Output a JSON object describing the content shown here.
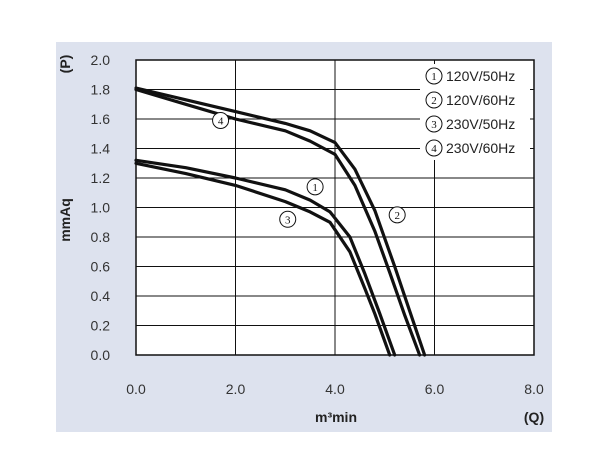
{
  "chart_data": {
    "type": "line",
    "xlabel": "m³min",
    "x_axis_symbol": "(Q)",
    "ylabel": "mmAq",
    "y_axis_symbol": "(P)",
    "xlim": [
      0,
      8
    ],
    "ylim": [
      0,
      2
    ],
    "x_ticks": [
      0,
      2,
      4,
      6,
      8
    ],
    "x_tick_labels": [
      "0.0",
      "2.0",
      "4.0",
      "6.0",
      "8.0"
    ],
    "y_ticks": [
      0,
      0.2,
      0.4,
      0.6,
      0.8,
      1.0,
      1.2,
      1.4,
      1.6,
      1.8,
      2.0
    ],
    "y_tick_labels": [
      "0.0",
      "0.2",
      "0.4",
      "0.6",
      "0.8",
      "1.0",
      "1.2",
      "1.4",
      "1.6",
      "1.8",
      "2.0"
    ],
    "grid": true,
    "legend_position": "top-right",
    "series": [
      {
        "marker": "1",
        "name": "120V/50Hz",
        "x": [
          0,
          1.0,
          2.0,
          3.0,
          3.5,
          3.9,
          4.3,
          4.6,
          4.9,
          5.2
        ],
        "y": [
          1.32,
          1.27,
          1.2,
          1.12,
          1.05,
          0.97,
          0.8,
          0.55,
          0.28,
          0.0
        ]
      },
      {
        "marker": "2",
        "name": "120V/60Hz",
        "x": [
          0,
          1.0,
          2.0,
          3.0,
          3.5,
          4.0,
          4.4,
          4.8,
          5.2,
          5.5,
          5.8
        ],
        "y": [
          1.81,
          1.73,
          1.65,
          1.57,
          1.52,
          1.44,
          1.26,
          0.98,
          0.6,
          0.3,
          0.0
        ]
      },
      {
        "marker": "3",
        "name": "230V/50Hz",
        "x": [
          0,
          1.0,
          2.0,
          3.0,
          3.5,
          3.9,
          4.3,
          4.6,
          4.8,
          5.1
        ],
        "y": [
          1.3,
          1.23,
          1.15,
          1.04,
          0.97,
          0.9,
          0.7,
          0.45,
          0.28,
          0.0
        ]
      },
      {
        "marker": "4",
        "name": "230V/60Hz",
        "x": [
          0,
          1.0,
          2.0,
          3.0,
          3.5,
          4.0,
          4.4,
          4.8,
          5.1,
          5.4,
          5.7
        ],
        "y": [
          1.8,
          1.7,
          1.6,
          1.52,
          1.45,
          1.36,
          1.15,
          0.84,
          0.56,
          0.27,
          0.0
        ]
      }
    ],
    "curve_labels": [
      {
        "marker": "4",
        "x": 1.7,
        "y": 1.59
      },
      {
        "marker": "1",
        "x": 3.6,
        "y": 1.14
      },
      {
        "marker": "3",
        "x": 3.05,
        "y": 0.92
      },
      {
        "marker": "2",
        "x": 5.25,
        "y": 0.95
      }
    ],
    "colors": {
      "line": "#111111",
      "grid": "#111111",
      "panel": "#dde2ee",
      "plot_bg": "#ffffff"
    }
  }
}
